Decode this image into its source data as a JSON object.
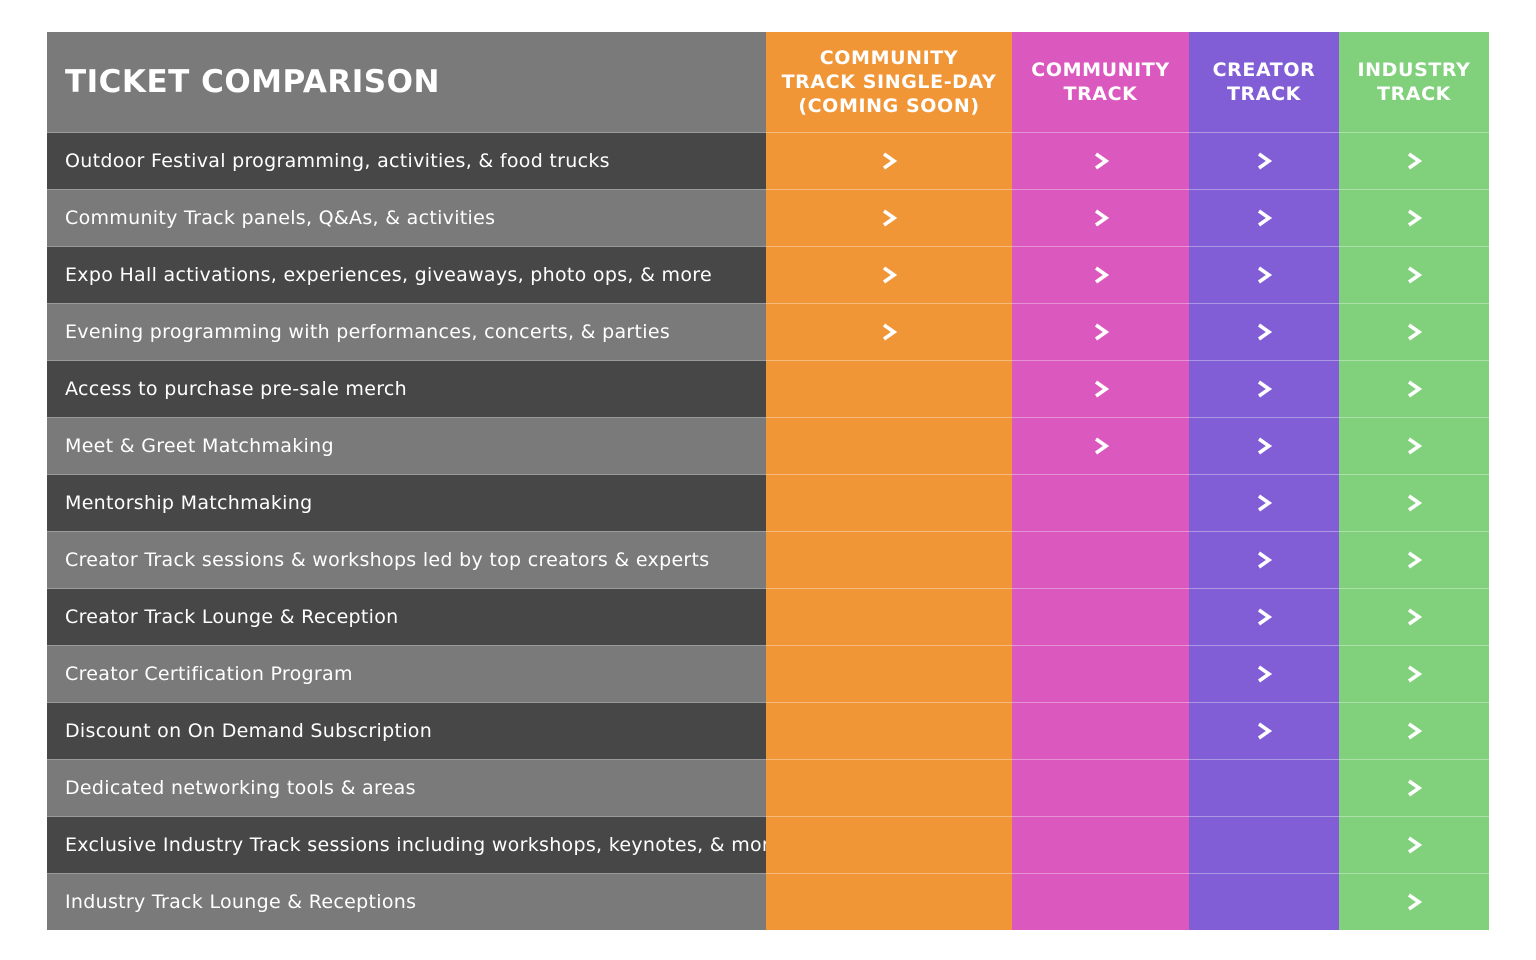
{
  "title": "TICKET COMPARISON",
  "tiers": [
    {
      "label": "COMMUNITY\nTRACK SINGLE-DAY\n(COMING SOON)",
      "color": "#f09637"
    },
    {
      "label": "COMMUNITY\nTRACK",
      "color": "#db58bf"
    },
    {
      "label": "CREATOR\nTRACK",
      "color": "#825ed6"
    },
    {
      "label": "INDUSTRY\nTRACK",
      "color": "#80d07c"
    }
  ],
  "features": [
    {
      "label": "Outdoor Festival programming, activities, & food trucks",
      "included": [
        true,
        true,
        true,
        true
      ]
    },
    {
      "label": "Community Track panels, Q&As, & activities",
      "included": [
        true,
        true,
        true,
        true
      ]
    },
    {
      "label": "Expo Hall activations, experiences, giveaways, photo ops, & more",
      "included": [
        true,
        true,
        true,
        true
      ]
    },
    {
      "label": "Evening programming with performances, concerts, & parties",
      "included": [
        true,
        true,
        true,
        true
      ]
    },
    {
      "label": "Access to purchase pre-sale merch",
      "included": [
        false,
        true,
        true,
        true
      ]
    },
    {
      "label": "Meet & Greet Matchmaking",
      "included": [
        false,
        true,
        true,
        true
      ]
    },
    {
      "label": "Mentorship Matchmaking",
      "included": [
        false,
        false,
        true,
        true
      ]
    },
    {
      "label": "Creator Track sessions & workshops led by top creators & experts",
      "included": [
        false,
        false,
        true,
        true
      ]
    },
    {
      "label": "Creator Track Lounge & Reception",
      "included": [
        false,
        false,
        true,
        true
      ]
    },
    {
      "label": "Creator Certification Program",
      "included": [
        false,
        false,
        true,
        true
      ]
    },
    {
      "label": "Discount on On Demand Subscription",
      "included": [
        false,
        false,
        true,
        true
      ]
    },
    {
      "label": "Dedicated networking tools & areas",
      "included": [
        false,
        false,
        false,
        true
      ]
    },
    {
      "label": "Exclusive Industry Track sessions including workshops, keynotes, & more",
      "included": [
        false,
        false,
        false,
        true
      ]
    },
    {
      "label": "Industry Track Lounge & Receptions",
      "included": [
        false,
        false,
        false,
        true
      ]
    }
  ],
  "icons": {
    "included": "chevron-right-icon"
  }
}
